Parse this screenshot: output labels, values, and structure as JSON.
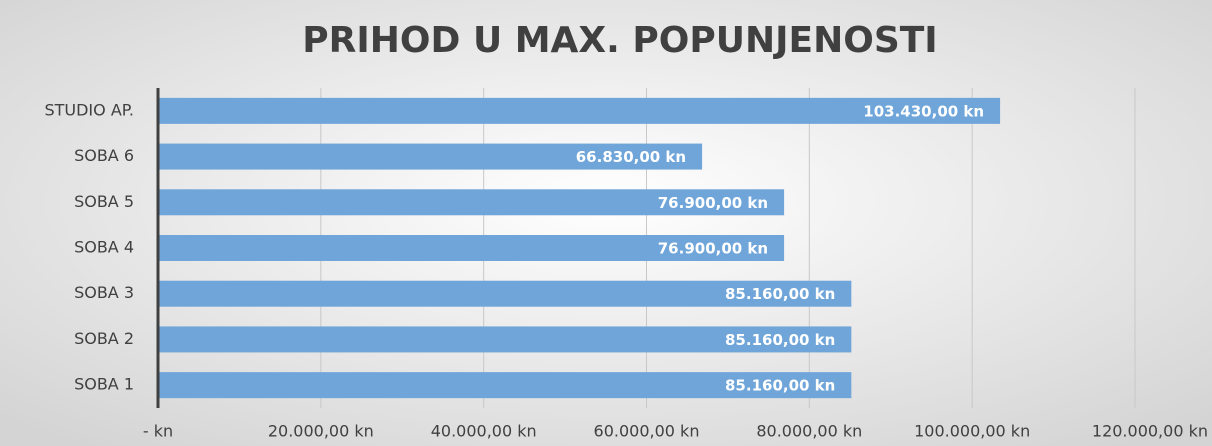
{
  "chart_data": {
    "type": "bar",
    "orientation": "horizontal",
    "title": "PRIHOD U MAX. POPUNJENOSTI",
    "categories": [
      "STUDIO AP.",
      "SOBA 6",
      "SOBA 5",
      "SOBA 4",
      "SOBA 3",
      "SOBA 2",
      "SOBA 1"
    ],
    "values": [
      103430,
      66830,
      76900,
      76900,
      85160,
      85160,
      85160
    ],
    "value_labels": [
      "103.430,00 kn",
      "66.830,00 kn",
      "76.900,00 kn",
      "76.900,00 kn",
      "85.160,00 kn",
      "85.160,00 kn",
      "85.160,00 kn"
    ],
    "color": "#6fa5d9",
    "xlim": [
      0,
      120000
    ],
    "xticks": [
      {
        "value": 0,
        "label": "-  kn"
      },
      {
        "value": 20000,
        "label": "20.000,00 kn"
      },
      {
        "value": 40000,
        "label": "40.000,00 kn"
      },
      {
        "value": 60000,
        "label": "60.000,00 kn"
      },
      {
        "value": 80000,
        "label": "80.000,00 kn"
      },
      {
        "value": 100000,
        "label": "100.000,00 kn"
      },
      {
        "value": 120000,
        "label": "120.000,00 kn"
      }
    ],
    "grid": true
  }
}
